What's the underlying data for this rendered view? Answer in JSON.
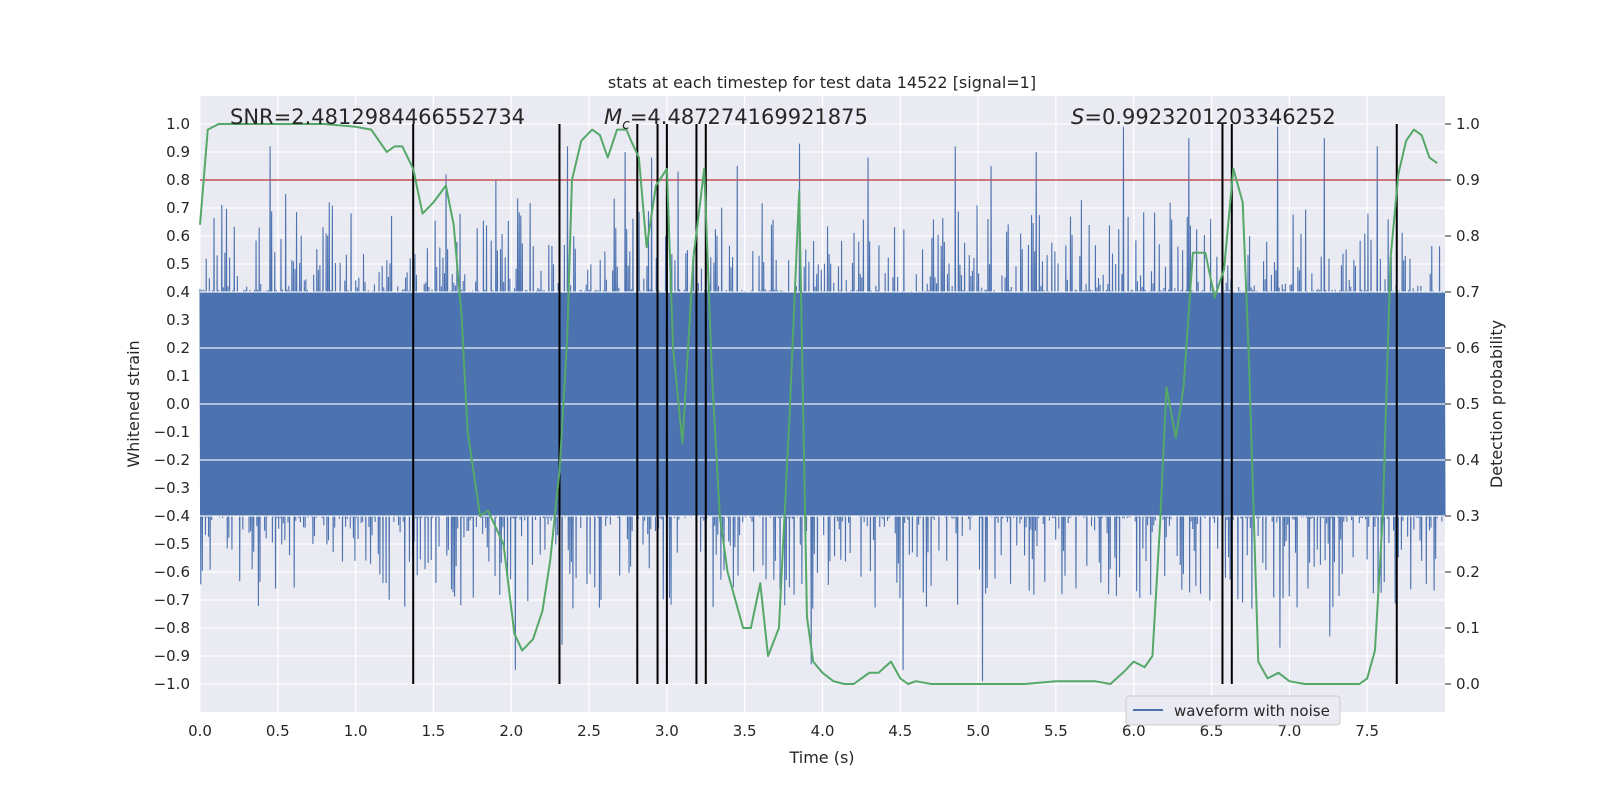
{
  "chart_data": {
    "type": "line",
    "title": "stats at each timestep for test data 14522 [signal=1]",
    "xlabel": "Time (s)",
    "ylabel": "Whitened strain",
    "y2label": "Detection probability",
    "xlim": [
      0.0,
      8.0
    ],
    "ylim": [
      -1.1,
      1.1
    ],
    "y2lim": [
      -0.05,
      1.05
    ],
    "xticks": [
      "0.0",
      "0.5",
      "1.0",
      "1.5",
      "2.0",
      "2.5",
      "3.0",
      "3.5",
      "4.0",
      "4.5",
      "5.0",
      "5.5",
      "6.0",
      "6.5",
      "7.0",
      "7.5"
    ],
    "yticks": [
      "−1.0",
      "−0.9",
      "−0.8",
      "−0.7",
      "−0.6",
      "−0.5",
      "−0.4",
      "−0.3",
      "−0.2",
      "−0.1",
      "0.0",
      "0.1",
      "0.2",
      "0.3",
      "0.4",
      "0.5",
      "0.6",
      "0.7",
      "0.8",
      "0.9",
      "1.0"
    ],
    "y2ticks": [
      "0.0",
      "0.1",
      "0.2",
      "0.3",
      "0.4",
      "0.5",
      "0.6",
      "0.7",
      "0.8",
      "0.9",
      "1.0"
    ],
    "annotations": {
      "snr": "SNR=2.4812984466552734",
      "mc_symbol": "M",
      "mc_sub": "c",
      "mc_value": "=4.487274169921875",
      "s_symbol": "S",
      "s_value": "=0.9923201203346252"
    },
    "threshold": {
      "y2": 0.9,
      "color": "#c44e52"
    },
    "vlines_x": [
      1.37,
      2.31,
      2.81,
      2.94,
      3.0,
      3.19,
      3.25,
      6.57,
      6.63,
      7.69
    ],
    "waveform": {
      "name": "waveform with noise",
      "color": "#4c72b0",
      "n_samples": 1600,
      "core_amplitude": 0.4,
      "seed": 14522,
      "spikes": [
        [
          0.45,
          0.92
        ],
        [
          0.55,
          0.75
        ],
        [
          0.83,
          0.72
        ],
        [
          1.35,
          0.52
        ],
        [
          1.58,
          0.82
        ],
        [
          1.9,
          0.8
        ],
        [
          2.03,
          -0.95
        ],
        [
          2.33,
          -0.86
        ],
        [
          2.36,
          0.92
        ],
        [
          2.73,
          0.9
        ],
        [
          2.9,
          0.88
        ],
        [
          3.07,
          0.83
        ],
        [
          3.25,
          -0.84
        ],
        [
          3.45,
          0.85
        ],
        [
          3.85,
          0.93
        ],
        [
          3.93,
          -0.93
        ],
        [
          4.29,
          0.88
        ],
        [
          4.52,
          -0.95
        ],
        [
          4.85,
          0.92
        ],
        [
          5.03,
          -0.99
        ],
        [
          5.08,
          0.85
        ],
        [
          5.37,
          0.9
        ],
        [
          5.93,
          0.99
        ],
        [
          6.35,
          0.95
        ],
        [
          6.92,
          0.99
        ],
        [
          6.94,
          -0.87
        ],
        [
          7.22,
          0.95
        ],
        [
          7.26,
          -0.83
        ],
        [
          7.56,
          0.92
        ]
      ]
    },
    "probability": {
      "color": "#55a868",
      "x": [
        0.0,
        0.05,
        0.12,
        0.25,
        0.5,
        0.8,
        1.0,
        1.1,
        1.15,
        1.2,
        1.25,
        1.3,
        1.37,
        1.43,
        1.5,
        1.58,
        1.63,
        1.68,
        1.72,
        1.8,
        1.85,
        1.95,
        2.02,
        2.07,
        2.14,
        2.2,
        2.25,
        2.31,
        2.36,
        2.39,
        2.45,
        2.52,
        2.57,
        2.62,
        2.68,
        2.74,
        2.77,
        2.82,
        2.87,
        2.93,
        3.0,
        3.04,
        3.1,
        3.17,
        3.24,
        3.29,
        3.34,
        3.39,
        3.44,
        3.49,
        3.54,
        3.6,
        3.65,
        3.72,
        3.79,
        3.85,
        3.9,
        3.94,
        4.0,
        4.07,
        4.14,
        4.2,
        4.25,
        4.3,
        4.36,
        4.44,
        4.5,
        4.55,
        4.6,
        4.7,
        4.8,
        5.0,
        5.3,
        5.5,
        5.75,
        5.85,
        5.93,
        6.0,
        6.07,
        6.12,
        6.17,
        6.21,
        6.27,
        6.32,
        6.38,
        6.46,
        6.52,
        6.58,
        6.64,
        6.7,
        6.74,
        6.8,
        6.86,
        6.93,
        7.0,
        7.1,
        7.3,
        7.45,
        7.5,
        7.55,
        7.6,
        7.65,
        7.7,
        7.75,
        7.8,
        7.85,
        7.9,
        7.95
      ],
      "y": [
        0.82,
        0.99,
        1.0,
        1.0,
        1.0,
        1.0,
        0.995,
        0.99,
        0.97,
        0.95,
        0.96,
        0.96,
        0.92,
        0.84,
        0.86,
        0.89,
        0.82,
        0.66,
        0.45,
        0.3,
        0.31,
        0.25,
        0.09,
        0.06,
        0.08,
        0.13,
        0.22,
        0.38,
        0.62,
        0.9,
        0.97,
        0.99,
        0.98,
        0.94,
        0.99,
        0.99,
        0.97,
        0.94,
        0.78,
        0.89,
        0.92,
        0.6,
        0.43,
        0.76,
        0.92,
        0.55,
        0.3,
        0.2,
        0.15,
        0.1,
        0.1,
        0.18,
        0.05,
        0.1,
        0.49,
        0.88,
        0.12,
        0.04,
        0.02,
        0.005,
        0.0,
        0.0,
        0.01,
        0.02,
        0.02,
        0.04,
        0.01,
        0.0,
        0.005,
        0.0,
        0.0,
        0.0,
        0.0,
        0.005,
        0.005,
        0.0,
        0.02,
        0.04,
        0.03,
        0.05,
        0.29,
        0.53,
        0.44,
        0.53,
        0.77,
        0.77,
        0.69,
        0.74,
        0.92,
        0.86,
        0.58,
        0.04,
        0.01,
        0.02,
        0.005,
        0.0,
        0.0,
        0.0,
        0.01,
        0.06,
        0.3,
        0.76,
        0.91,
        0.97,
        0.99,
        0.98,
        0.94,
        0.93
      ]
    },
    "legend_position": "lower-right"
  }
}
